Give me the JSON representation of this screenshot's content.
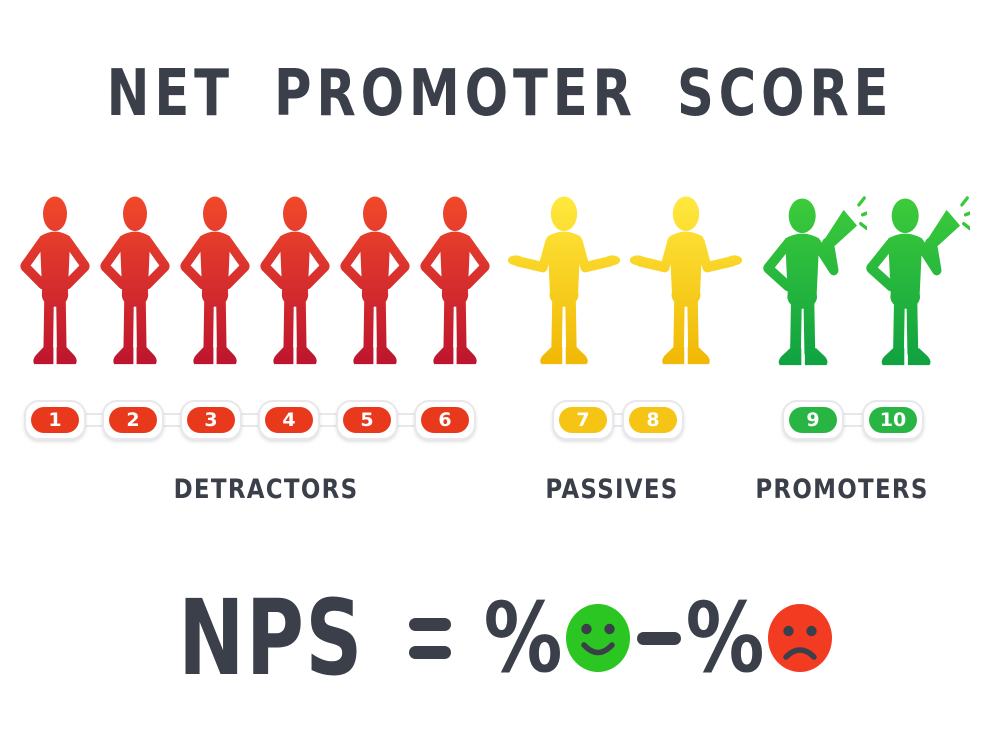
{
  "title": "NET PROMOTER SCORE",
  "scale": {
    "min": 1,
    "max": 10
  },
  "groups": [
    {
      "id": "detractors",
      "label": "DETRACTORS",
      "figure": "akimbo",
      "figure_count": 6,
      "scores": [
        "1",
        "2",
        "3",
        "4",
        "5",
        "6"
      ],
      "gradient_top": "#f2492b",
      "gradient_bottom": "#ba122f",
      "badge_color": "#e8391d"
    },
    {
      "id": "passives",
      "label": "PASSIVES",
      "figure": "shrug",
      "figure_count": 2,
      "scores": [
        "7",
        "8"
      ],
      "gradient_top": "#ffe93e",
      "gradient_bottom": "#f0b502",
      "badge_color": "#f6c414"
    },
    {
      "id": "promoters",
      "label": "PROMOTERS",
      "figure": "megaphone",
      "figure_count": 2,
      "scores": [
        "9",
        "10"
      ],
      "gradient_top": "#3dcc3a",
      "gradient_bottom": "#0ea041",
      "badge_color": "#29b543"
    }
  ],
  "formula": {
    "lhs": "NPS",
    "equals": "=",
    "percent_promoters": "%",
    "minus": "−",
    "percent_detractors": "%",
    "smiley_color": "#2cc622",
    "frowny_color": "#f23b20",
    "feature_color": "#3a3f49"
  },
  "colors": {
    "background": "#ffffff",
    "text": "#3a3f49",
    "badge_outline": "#e8e8ec"
  }
}
